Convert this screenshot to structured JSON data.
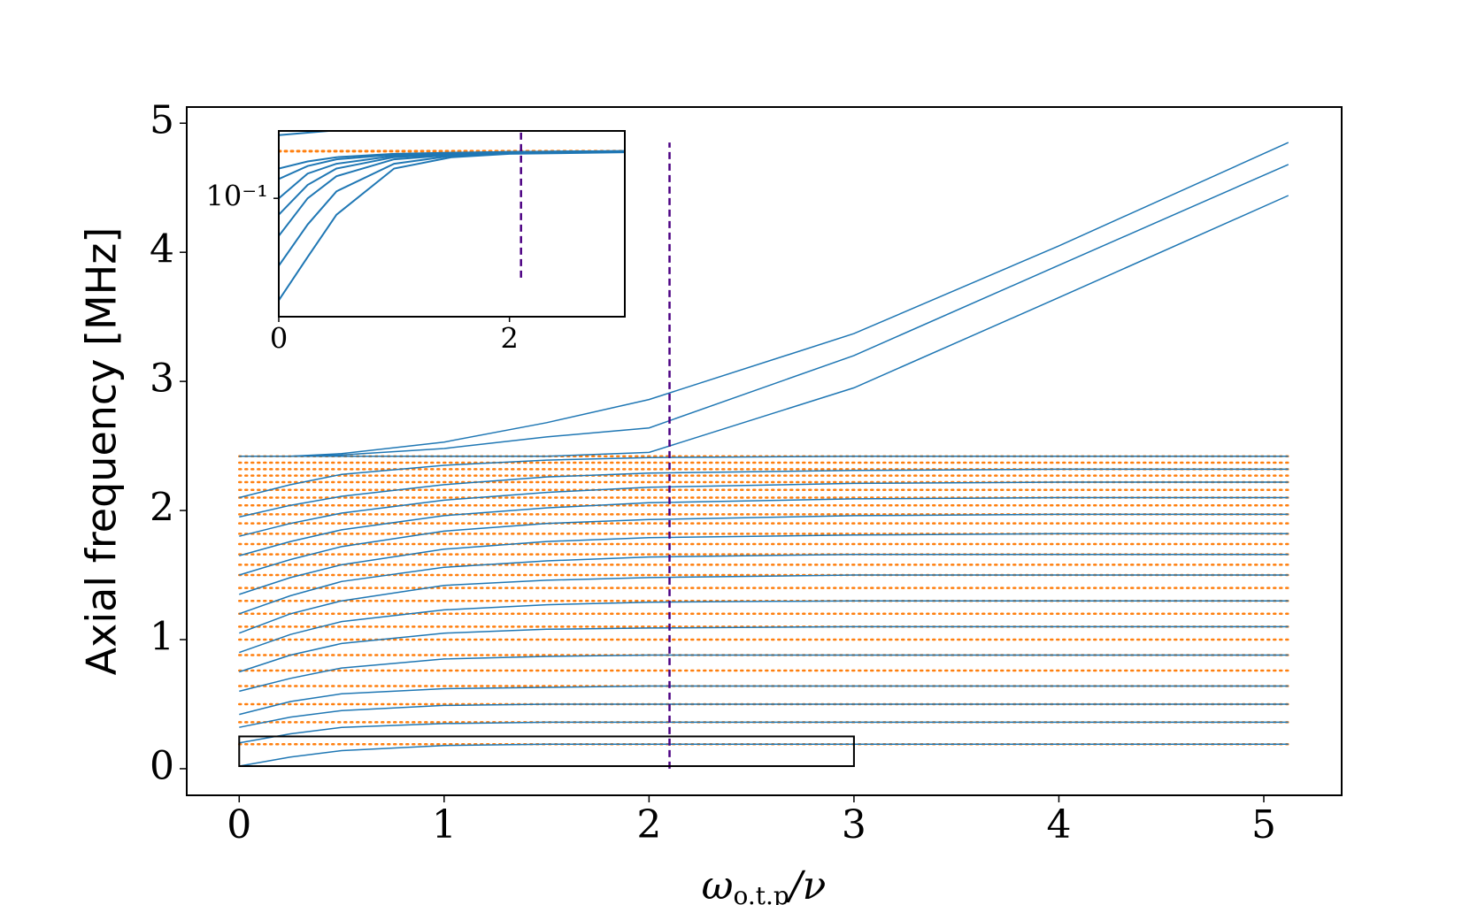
{
  "chart_data": {
    "type": "line",
    "xlabel": {
      "main": "ω",
      "sub": "o.t.p",
      "rest": "/ν"
    },
    "ylabel": "Axial frequency [MHz]",
    "xlim": [
      -0.256,
      5.38
    ],
    "ylim": [
      -0.206,
      5.125
    ],
    "xticks": [
      0,
      1,
      2,
      3,
      4,
      5
    ],
    "yticks": [
      0,
      1,
      2,
      3,
      4,
      5
    ],
    "color": "#1f77b4",
    "x": [
      0,
      0.25,
      0.5,
      1,
      1.5,
      2,
      3,
      4,
      5.12
    ],
    "series": [
      {
        "values": [
          0.02,
          0.09,
          0.14,
          0.18,
          0.19,
          0.19,
          0.19,
          0.19,
          0.19
        ]
      },
      {
        "values": [
          0.2,
          0.27,
          0.32,
          0.35,
          0.36,
          0.36,
          0.36,
          0.36,
          0.36
        ]
      },
      {
        "values": [
          0.32,
          0.4,
          0.45,
          0.49,
          0.5,
          0.5,
          0.5,
          0.5,
          0.5
        ]
      },
      {
        "values": [
          0.42,
          0.52,
          0.58,
          0.62,
          0.63,
          0.64,
          0.64,
          0.64,
          0.64
        ]
      },
      {
        "values": [
          0.6,
          0.7,
          0.78,
          0.85,
          0.87,
          0.88,
          0.88,
          0.88,
          0.88
        ]
      },
      {
        "values": [
          0.75,
          0.88,
          0.97,
          1.05,
          1.08,
          1.09,
          1.1,
          1.1,
          1.1
        ]
      },
      {
        "values": [
          0.9,
          1.04,
          1.14,
          1.23,
          1.27,
          1.29,
          1.3,
          1.3,
          1.3
        ]
      },
      {
        "values": [
          1.05,
          1.2,
          1.3,
          1.42,
          1.46,
          1.48,
          1.5,
          1.5,
          1.5
        ]
      },
      {
        "values": [
          1.2,
          1.34,
          1.45,
          1.56,
          1.61,
          1.64,
          1.66,
          1.66,
          1.66
        ]
      },
      {
        "values": [
          1.35,
          1.48,
          1.58,
          1.7,
          1.76,
          1.79,
          1.81,
          1.82,
          1.82
        ]
      },
      {
        "values": [
          1.5,
          1.62,
          1.72,
          1.84,
          1.9,
          1.93,
          1.96,
          1.97,
          1.97
        ]
      },
      {
        "values": [
          1.65,
          1.76,
          1.85,
          1.96,
          2.02,
          2.06,
          2.09,
          2.1,
          2.1
        ]
      },
      {
        "values": [
          1.8,
          1.9,
          1.98,
          2.08,
          2.14,
          2.18,
          2.21,
          2.22,
          2.22
        ]
      },
      {
        "values": [
          1.95,
          2.04,
          2.11,
          2.2,
          2.26,
          2.29,
          2.31,
          2.32,
          2.32
        ]
      },
      {
        "values": [
          2.1,
          2.2,
          2.28,
          2.35,
          2.39,
          2.41,
          2.42,
          2.42,
          2.42
        ]
      },
      {
        "values": [
          2.42,
          2.42,
          2.44,
          2.53,
          2.68,
          2.86,
          3.37,
          4.05,
          4.85
        ]
      },
      {
        "values": [
          2.42,
          2.42,
          2.43,
          2.48,
          2.57,
          2.64,
          3.2,
          3.9,
          4.68
        ]
      },
      {
        "values": [
          2.42,
          2.42,
          2.42,
          2.42,
          2.42,
          2.45,
          2.95,
          3.65,
          4.44
        ]
      }
    ],
    "levels": {
      "color": "#ff7f0e",
      "values": [
        0.19,
        0.36,
        0.5,
        0.64,
        0.76,
        0.88,
        1.0,
        1.1,
        1.2,
        1.3,
        1.4,
        1.5,
        1.58,
        1.66,
        1.74,
        1.82,
        1.9,
        1.97,
        2.04,
        2.1,
        2.16,
        2.22,
        2.27,
        2.32,
        2.37,
        2.42
      ]
    },
    "vline": {
      "x": 2.1,
      "y": [
        0,
        4.85
      ],
      "color": "#4b0082"
    },
    "box": {
      "x": [
        0,
        3
      ],
      "y": [
        0.02,
        0.25
      ]
    },
    "inset": {
      "type": "line",
      "log_y": true,
      "xlim": [
        0,
        3
      ],
      "ylim": [
        0.02,
        0.25
      ],
      "xticks": [
        0,
        2
      ],
      "yticks": [
        {
          "value": 0.1,
          "label": "10⁻¹"
        }
      ],
      "color": "#1f77b4",
      "x": [
        0,
        0.25,
        0.5,
        1,
        1.5,
        2,
        3
      ],
      "series": [
        {
          "values": [
            0.025,
            0.045,
            0.08,
            0.15,
            0.175,
            0.183,
            0.187
          ]
        },
        {
          "values": [
            0.04,
            0.07,
            0.11,
            0.16,
            0.178,
            0.184,
            0.188
          ]
        },
        {
          "values": [
            0.06,
            0.1,
            0.135,
            0.17,
            0.18,
            0.185,
            0.188
          ]
        },
        {
          "values": [
            0.08,
            0.12,
            0.15,
            0.175,
            0.182,
            0.186,
            0.189
          ]
        },
        {
          "values": [
            0.1,
            0.14,
            0.16,
            0.178,
            0.184,
            0.187,
            0.189
          ]
        },
        {
          "values": [
            0.13,
            0.155,
            0.17,
            0.181,
            0.185,
            0.188,
            0.19
          ]
        },
        {
          "values": [
            0.15,
            0.165,
            0.175,
            0.183,
            0.186,
            0.188,
            0.19
          ]
        },
        {
          "values": [
            0.236,
            0.244,
            0.252,
            null,
            null,
            null,
            null
          ]
        }
      ],
      "levels": {
        "color": "#ff7f0e",
        "values": [
          0.19
        ]
      },
      "vline": {
        "x": 2.1,
        "y": [
          0.034,
          0.25
        ],
        "color": "#4b0082"
      }
    }
  }
}
